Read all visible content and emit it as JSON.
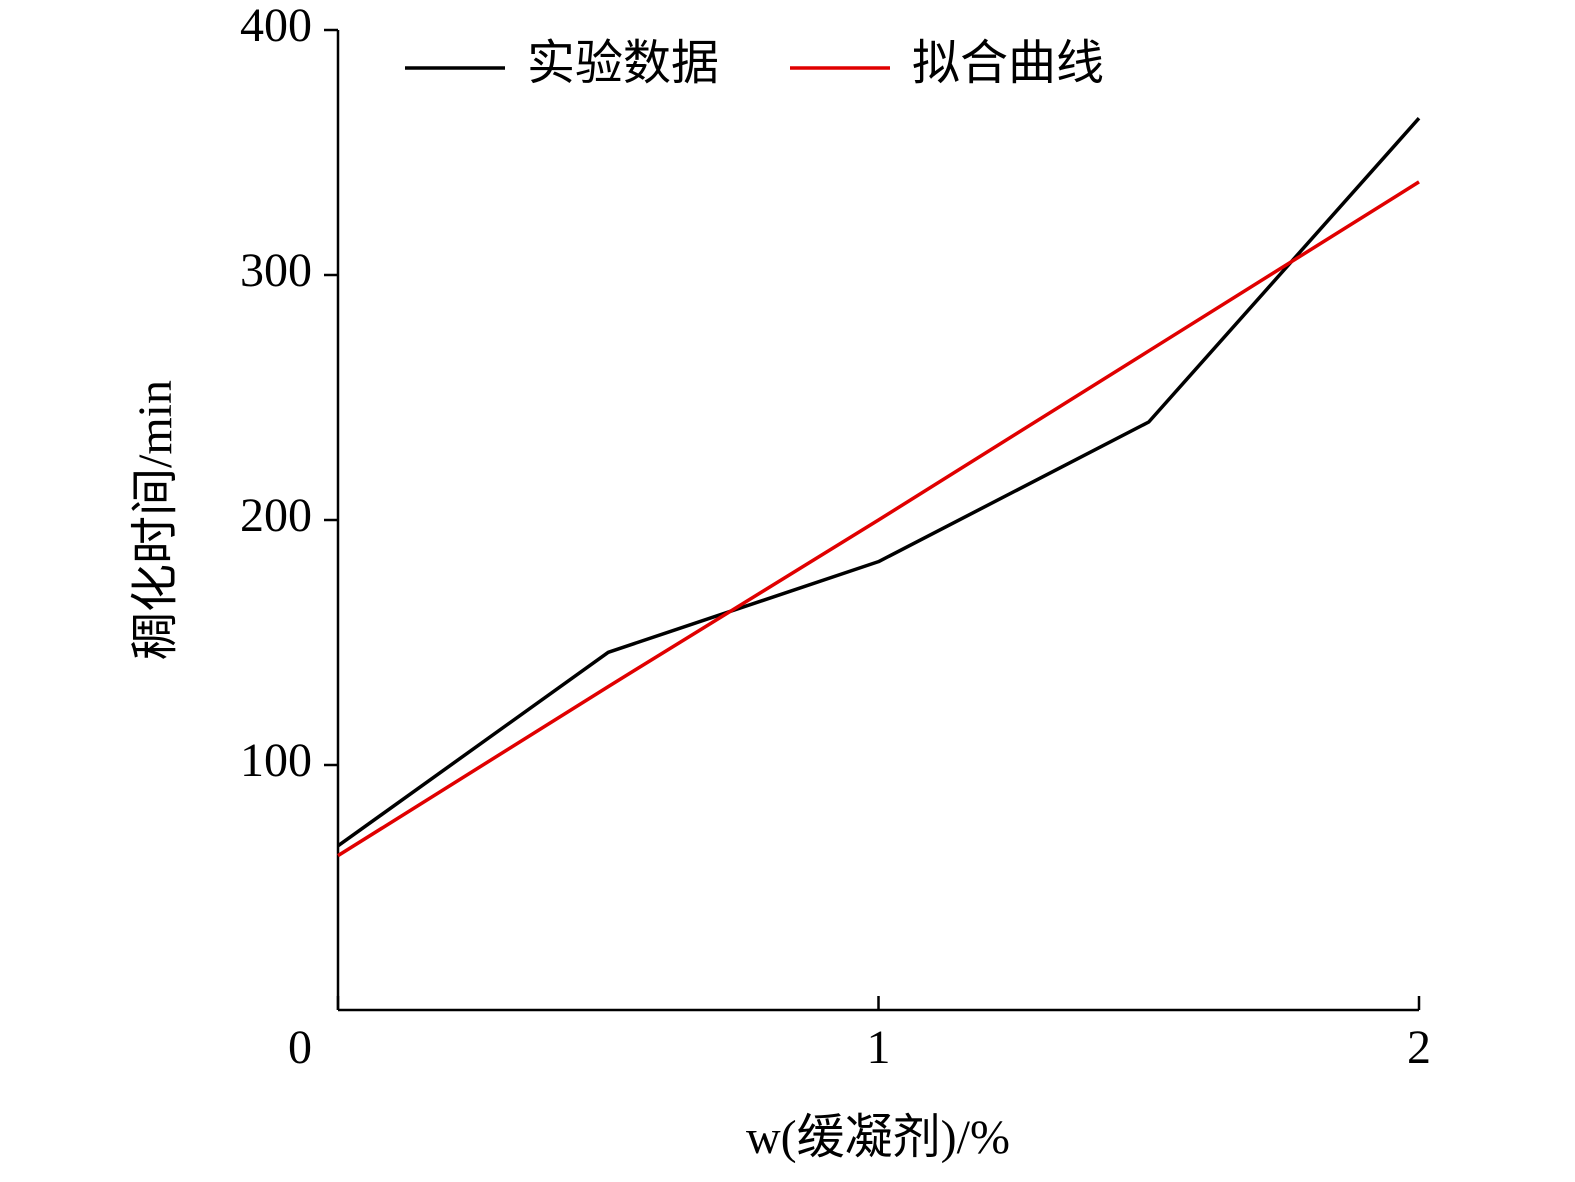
{
  "chart_data": {
    "type": "line",
    "x_label": "w(缓凝剂)/%",
    "y_label": "稠化时间/min",
    "x": [
      0,
      0.5,
      1,
      1.5,
      2
    ],
    "series": [
      {
        "name": "实验数据",
        "color": "#000000",
        "values": [
          67,
          146,
          183,
          240,
          364
        ]
      },
      {
        "name": "拟合曲线",
        "color": "#e00000",
        "values": [
          63,
          132,
          200,
          269,
          338
        ]
      }
    ],
    "xlim": [
      0,
      2
    ],
    "ylim": [
      0,
      400
    ],
    "xticks": [
      0,
      1,
      2
    ],
    "yticks": [
      100,
      200,
      300,
      400
    ],
    "legend": "top"
  }
}
